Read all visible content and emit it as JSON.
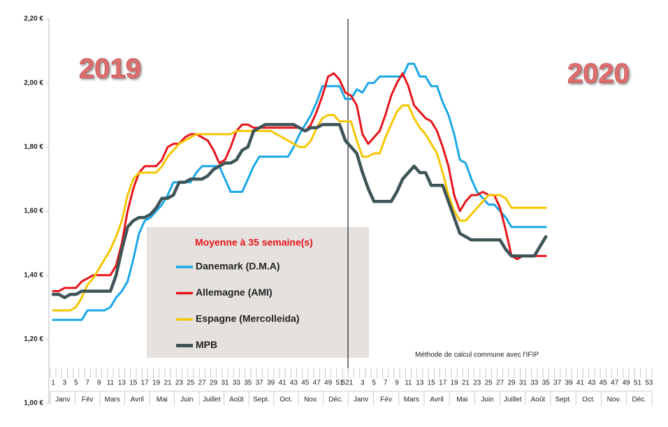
{
  "chart_data": {
    "type": "line",
    "legend_title": "Moyenne à  35 semaine(s)",
    "annotations": [
      "2019",
      "2020",
      "Méthode de calcul commune avec l'IFIP"
    ],
    "categories": [
      "1",
      null,
      "3",
      null,
      "5",
      null,
      "7",
      null,
      "9",
      null,
      "11",
      null,
      "13",
      null,
      "15",
      null,
      "17",
      null,
      "19",
      null,
      "21",
      null,
      "23",
      null,
      "25",
      null,
      "27",
      null,
      "29",
      null,
      "31",
      null,
      "33",
      null,
      "35",
      null,
      "37",
      null,
      "39",
      null,
      "41",
      null,
      "43",
      null,
      "45",
      null,
      "47",
      null,
      "49",
      null,
      "51",
      "52",
      "1",
      null,
      "3",
      null,
      "5",
      null,
      "7",
      null,
      "9",
      null,
      "11",
      null,
      "13",
      null,
      "15",
      null,
      "17",
      null,
      "19",
      null,
      "21",
      null,
      "23",
      null,
      "25",
      null,
      "27",
      null,
      "29",
      null,
      "31",
      null,
      "33",
      null,
      "35",
      null,
      "37",
      null,
      "39",
      null,
      "41",
      null,
      "43",
      null,
      "45",
      null,
      "47",
      null,
      "49",
      null,
      "51",
      null,
      "53"
    ],
    "months": [
      "Janv",
      "Fév",
      "Mars",
      "Avril",
      "Mai",
      "Juin",
      "Juillet",
      "Août",
      "Sept.",
      "Oct.",
      "Nov.",
      "Déc.",
      "Janv",
      "Fév",
      "Mars",
      "Avril",
      "Mai",
      "Juin",
      "Juillet",
      "Août",
      "Sept.",
      "Oct.",
      "Nov.",
      "Déc."
    ],
    "ylim": [
      1.0,
      2.2
    ],
    "yticks": [
      {
        "value": 1.0,
        "label": "1,00 €"
      },
      {
        "value": 1.2,
        "label": "1,20 €"
      },
      {
        "value": 1.4,
        "label": "1,40 €"
      },
      {
        "value": 1.6,
        "label": "1,60 €"
      },
      {
        "value": 1.8,
        "label": "1,80 €"
      },
      {
        "value": 2.0,
        "label": "2,00 €"
      },
      {
        "value": 2.2,
        "label": "2,20 €"
      }
    ],
    "grid": false,
    "series": [
      {
        "name": "Danemark (D.M.A)",
        "color": "#1aa7e8",
        "values": [
          1.26,
          1.26,
          1.26,
          1.26,
          1.26,
          1.26,
          1.29,
          1.29,
          1.29,
          1.29,
          1.3,
          1.33,
          1.35,
          1.38,
          1.45,
          1.53,
          1.57,
          1.58,
          1.6,
          1.62,
          1.65,
          1.69,
          1.69,
          1.69,
          1.69,
          1.72,
          1.74,
          1.74,
          1.74,
          1.74,
          1.7,
          1.66,
          1.66,
          1.66,
          1.7,
          1.74,
          1.77,
          1.77,
          1.77,
          1.77,
          1.77,
          1.77,
          1.8,
          1.84,
          1.87,
          1.9,
          1.94,
          1.99,
          1.99,
          1.99,
          1.99,
          1.95,
          1.95,
          1.98,
          1.97,
          2.0,
          2.0,
          2.02,
          2.02,
          2.02,
          2.02,
          2.02,
          2.06,
          2.06,
          2.02,
          2.02,
          1.99,
          1.99,
          1.94,
          1.9,
          1.84,
          1.76,
          1.75,
          1.7,
          1.66,
          1.64,
          1.62,
          1.62,
          1.6,
          1.58,
          1.55,
          1.55,
          1.55,
          1.55,
          1.55,
          1.55,
          1.55,
          null,
          null,
          null,
          null,
          null,
          null,
          null,
          null,
          null,
          null,
          null,
          null,
          null,
          null,
          null,
          null,
          null,
          null
        ]
      },
      {
        "name": "Allemagne (AMI)",
        "color": "#e8141b",
        "values": [
          1.35,
          1.35,
          1.36,
          1.36,
          1.36,
          1.38,
          1.39,
          1.4,
          1.4,
          1.4,
          1.4,
          1.43,
          1.5,
          1.6,
          1.67,
          1.72,
          1.74,
          1.74,
          1.74,
          1.76,
          1.8,
          1.81,
          1.81,
          1.83,
          1.84,
          1.84,
          1.83,
          1.82,
          1.79,
          1.75,
          1.76,
          1.8,
          1.85,
          1.87,
          1.87,
          1.86,
          1.86,
          1.86,
          1.86,
          1.86,
          1.86,
          1.86,
          1.86,
          1.86,
          1.85,
          1.87,
          1.91,
          1.96,
          2.02,
          2.03,
          2.01,
          1.97,
          1.96,
          1.93,
          1.84,
          1.81,
          1.83,
          1.85,
          1.9,
          1.96,
          2.0,
          2.03,
          1.99,
          1.93,
          1.91,
          1.89,
          1.88,
          1.85,
          1.8,
          1.74,
          1.65,
          1.6,
          1.63,
          1.65,
          1.65,
          1.66,
          1.65,
          1.65,
          1.61,
          1.54,
          1.46,
          1.45,
          1.46,
          1.46,
          1.46,
          1.46,
          1.46,
          null,
          null,
          null,
          null,
          null,
          null,
          null,
          null,
          null,
          null,
          null,
          null,
          null,
          null,
          null,
          null,
          null,
          null
        ]
      },
      {
        "name": "Espagne (Mercolleida)",
        "color": "#f7c600",
        "values": [
          1.29,
          1.29,
          1.29,
          1.29,
          1.3,
          1.33,
          1.37,
          1.39,
          1.42,
          1.45,
          1.48,
          1.52,
          1.57,
          1.65,
          1.7,
          1.72,
          1.72,
          1.72,
          1.72,
          1.74,
          1.77,
          1.79,
          1.81,
          1.82,
          1.83,
          1.84,
          1.84,
          1.84,
          1.84,
          1.84,
          1.84,
          1.84,
          1.85,
          1.85,
          1.85,
          1.85,
          1.85,
          1.85,
          1.85,
          1.84,
          1.83,
          1.82,
          1.81,
          1.8,
          1.8,
          1.82,
          1.86,
          1.89,
          1.9,
          1.9,
          1.88,
          1.88,
          1.88,
          1.82,
          1.77,
          1.77,
          1.78,
          1.78,
          1.83,
          1.87,
          1.91,
          1.93,
          1.93,
          1.89,
          1.86,
          1.84,
          1.81,
          1.78,
          1.72,
          1.65,
          1.6,
          1.57,
          1.57,
          1.59,
          1.61,
          1.63,
          1.65,
          1.65,
          1.65,
          1.64,
          1.61,
          1.61,
          1.61,
          1.61,
          1.61,
          1.61,
          1.61,
          null,
          null,
          null,
          null,
          null,
          null,
          null,
          null,
          null,
          null,
          null,
          null,
          null,
          null,
          null,
          null,
          null,
          null
        ]
      },
      {
        "name": "MPB",
        "color": "#3e5457",
        "values": [
          1.34,
          1.34,
          1.33,
          1.34,
          1.34,
          1.35,
          1.35,
          1.35,
          1.35,
          1.35,
          1.35,
          1.4,
          1.48,
          1.55,
          1.57,
          1.58,
          1.58,
          1.59,
          1.61,
          1.64,
          1.64,
          1.65,
          1.69,
          1.69,
          1.7,
          1.7,
          1.7,
          1.71,
          1.73,
          1.74,
          1.75,
          1.75,
          1.76,
          1.79,
          1.8,
          1.85,
          1.86,
          1.87,
          1.87,
          1.87,
          1.87,
          1.87,
          1.87,
          1.86,
          1.85,
          1.86,
          1.86,
          1.87,
          1.87,
          1.87,
          1.87,
          1.82,
          1.8,
          1.78,
          1.72,
          1.67,
          1.63,
          1.63,
          1.63,
          1.63,
          1.66,
          1.7,
          1.72,
          1.74,
          1.72,
          1.72,
          1.68,
          1.68,
          1.68,
          1.63,
          1.58,
          1.53,
          1.52,
          1.51,
          1.51,
          1.51,
          1.51,
          1.51,
          1.51,
          1.48,
          1.46,
          1.46,
          1.46,
          1.46,
          1.46,
          1.49,
          1.52,
          null,
          null,
          null,
          null,
          null,
          null,
          null,
          null,
          null,
          null,
          null,
          null,
          null,
          null,
          null,
          null,
          null,
          null
        ]
      }
    ]
  }
}
